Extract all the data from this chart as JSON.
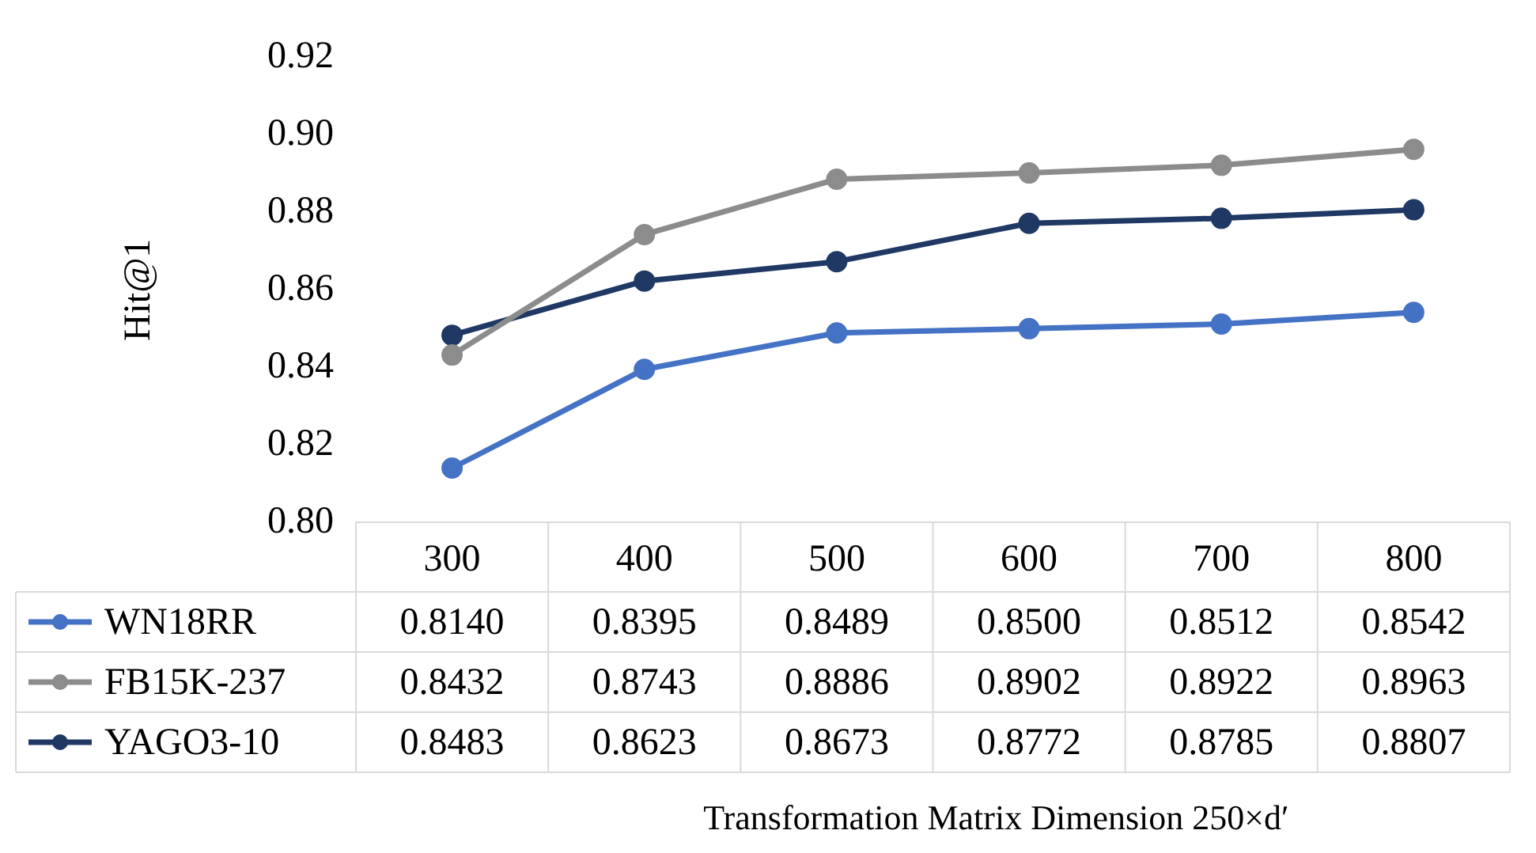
{
  "chart_data": {
    "type": "line",
    "ylabel": "Hit@1",
    "annotations": [
      "Transformation Matrix Dimension 250×d′"
    ],
    "categories": [
      "300",
      "400",
      "500",
      "600",
      "700",
      "800"
    ],
    "ylim": [
      0.8,
      0.92
    ],
    "yticks": [
      {
        "value": 0.8,
        "label": "0.80"
      },
      {
        "value": 0.82,
        "label": "0.82"
      },
      {
        "value": 0.84,
        "label": "0.84"
      },
      {
        "value": 0.86,
        "label": "0.86"
      },
      {
        "value": 0.88,
        "label": "0.88"
      },
      {
        "value": 0.9,
        "label": "0.90"
      },
      {
        "value": 0.92,
        "label": "0.92"
      }
    ],
    "grid": false,
    "legend": "bottom left",
    "marker": "circle",
    "line_style": "solid",
    "series": [
      {
        "name": "WN18RR",
        "color": "#4472c4",
        "values": [
          0.814,
          0.8395,
          0.8489,
          0.85,
          0.8512,
          0.8542
        ],
        "value_labels": [
          "0.8140",
          "0.8395",
          "0.8489",
          "0.8500",
          "0.8512",
          "0.8542"
        ]
      },
      {
        "name": "FB15K-237",
        "color": "#8c8c8c",
        "values": [
          0.8432,
          0.8743,
          0.8886,
          0.8902,
          0.8922,
          0.8963
        ],
        "value_labels": [
          "0.8432",
          "0.8743",
          "0.8886",
          "0.8902",
          "0.8922",
          "0.8963"
        ]
      },
      {
        "name": "YAGO3-10",
        "color": "#1f3864",
        "values": [
          0.8483,
          0.8623,
          0.8673,
          0.8772,
          0.8785,
          0.8807
        ],
        "value_labels": [
          "0.8483",
          "0.8623",
          "0.8673",
          "0.8772",
          "0.8785",
          "0.8807"
        ]
      }
    ]
  }
}
